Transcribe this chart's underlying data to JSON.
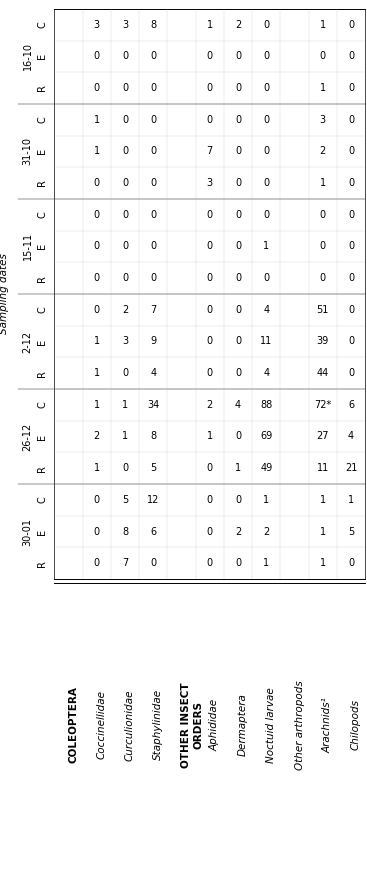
{
  "sampling_dates_label": "Sampling dates",
  "dates": [
    "16-10",
    "31-10",
    "15-11",
    "2-12",
    "26-12",
    "30-01"
  ],
  "treatments": [
    "C",
    "E",
    "R"
  ],
  "org_labels": [
    [
      "COLEOPTERA",
      true
    ],
    [
      "Coccinellidae",
      false
    ],
    [
      "Curculionidae",
      false
    ],
    [
      "Staphylinidae",
      false
    ],
    [
      "OTHER INSECT\nORDERS",
      true
    ],
    [
      "Aphididae",
      false
    ],
    [
      "Dermaptera",
      false
    ],
    [
      "Noctuid larvae",
      false
    ],
    [
      "Other arthropods",
      false
    ],
    [
      "Arachnids¹",
      false
    ],
    [
      "Chilopods",
      false
    ]
  ],
  "data": {
    "1": [
      3,
      0,
      0,
      1,
      1,
      0,
      0,
      0,
      0,
      0,
      1,
      1,
      1,
      2,
      1,
      0,
      0,
      0
    ],
    "2": [
      3,
      0,
      0,
      0,
      0,
      0,
      0,
      0,
      0,
      2,
      3,
      0,
      1,
      1,
      0,
      5,
      8,
      7
    ],
    "3": [
      8,
      0,
      0,
      0,
      0,
      0,
      0,
      0,
      0,
      7,
      9,
      4,
      34,
      8,
      5,
      12,
      6,
      0
    ],
    "5": [
      1,
      0,
      0,
      0,
      7,
      3,
      0,
      0,
      0,
      0,
      0,
      0,
      2,
      1,
      0,
      0,
      0,
      0
    ],
    "6": [
      2,
      0,
      0,
      0,
      0,
      0,
      0,
      0,
      0,
      0,
      0,
      0,
      4,
      0,
      1,
      0,
      2,
      0
    ],
    "7": [
      0,
      0,
      0,
      0,
      0,
      0,
      0,
      1,
      0,
      4,
      11,
      4,
      88,
      69,
      49,
      1,
      2,
      1
    ],
    "9": [
      1,
      0,
      1,
      3,
      2,
      1,
      0,
      0,
      0,
      51,
      39,
      44,
      "72*",
      27,
      11,
      1,
      1,
      1
    ],
    "10": [
      0,
      0,
      0,
      0,
      0,
      0,
      0,
      0,
      0,
      0,
      0,
      0,
      6,
      4,
      21,
      1,
      5,
      0
    ]
  },
  "background_color": "#ffffff",
  "text_color": "#000000",
  "font_size": 7.0,
  "label_font_size": 7.5,
  "header_font_size": 7.0
}
